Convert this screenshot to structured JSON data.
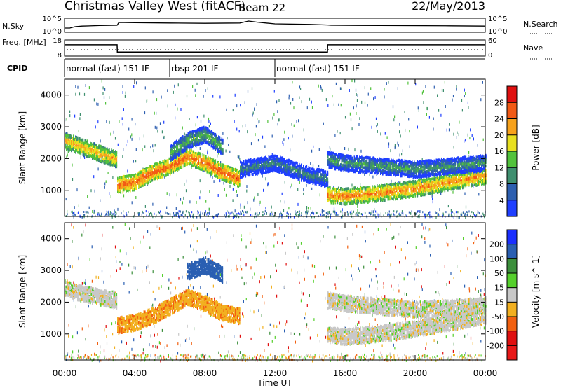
{
  "header": {
    "title": "Christmas Valley West (fitACF)",
    "beam": "Beam 22",
    "date": "22/May/2013"
  },
  "chart_data": [
    {
      "type": "line",
      "name_label": "N.Sky",
      "right_label": "N.Search",
      "yticks_left": [
        "10^5",
        "10^0"
      ],
      "yticks_right": [
        "10^5",
        "10^0"
      ],
      "x": [
        0,
        0.3,
        0.6,
        1,
        2,
        3,
        3.1,
        4,
        6,
        8,
        10,
        10.5,
        11,
        12,
        14,
        15,
        15.2,
        18,
        22,
        24
      ],
      "y": [
        1.5,
        1.5,
        2.0,
        2.2,
        2.4,
        2.5,
        3.5,
        3.4,
        3.3,
        3.2,
        3.3,
        4.0,
        3.6,
        3.0,
        2.8,
        2.6,
        2.5,
        2.4,
        2.3,
        2.2
      ]
    },
    {
      "type": "line",
      "name_label": "Freq. [MHz]",
      "right_label": "Nave",
      "yticks_left": [
        "18",
        "8"
      ],
      "yticks_right": [
        "60",
        "0"
      ],
      "x": [
        0,
        3,
        3.01,
        15,
        15.01,
        24
      ],
      "y": [
        15,
        15,
        10.5,
        10.5,
        15,
        15
      ]
    },
    {
      "type": "table",
      "name_label": "CPID",
      "segments": [
        {
          "start": 0,
          "end": 6,
          "label": "normal (fast) 151 IF"
        },
        {
          "start": 6,
          "end": 12,
          "label": "rbsp 201 IF"
        },
        {
          "start": 12,
          "end": 24,
          "label": "normal (fast) 151 IF"
        }
      ]
    },
    {
      "type": "heatmap",
      "ylabel": "Slant Range [km]",
      "yticks": [
        1000,
        2000,
        3000,
        4000
      ],
      "ylim": [
        180,
        4500
      ],
      "colorbar_label": "Power [dB]",
      "colorbar_ticks": [
        4,
        8,
        12,
        16,
        20,
        24,
        28
      ],
      "colorbar_colors": [
        "#1f3fff",
        "#2d5fb0",
        "#3f8f6f",
        "#52c23c",
        "#e8e020",
        "#f7a21c",
        "#f25a15",
        "#e01010"
      ],
      "bands": [
        {
          "x": [
            0,
            1,
            2,
            3
          ],
          "y": [
            2600,
            2400,
            2200,
            2000
          ],
          "v": 22
        },
        {
          "x": [
            3,
            4,
            5,
            6,
            7,
            8,
            9,
            10
          ],
          "y": [
            1200,
            1300,
            1600,
            1800,
            2100,
            1900,
            1600,
            1400
          ],
          "v": 26
        },
        {
          "x": [
            6,
            7,
            8,
            9
          ],
          "y": [
            2200,
            2600,
            2800,
            2400
          ],
          "v": 14
        },
        {
          "x": [
            10,
            11,
            12,
            13,
            14,
            15
          ],
          "y": [
            1700,
            1800,
            1900,
            1700,
            1500,
            1400
          ],
          "v": 10
        },
        {
          "x": [
            15,
            16,
            18,
            20,
            22,
            24
          ],
          "y": [
            900,
            850,
            950,
            1100,
            1300,
            1500
          ],
          "v": 24
        },
        {
          "x": [
            15,
            16,
            18,
            20,
            22,
            24
          ],
          "y": [
            2000,
            1900,
            1800,
            1700,
            1800,
            1900
          ],
          "v": 12
        }
      ]
    },
    {
      "type": "heatmap",
      "ylabel": "Slant Range [km]",
      "yticks": [
        1000,
        2000,
        3000,
        4000
      ],
      "ylim": [
        180,
        4500
      ],
      "colorbar_label": "Velocity [m s^-1]",
      "colorbar_ticks": [
        200,
        100,
        50,
        15,
        -15,
        -50,
        -100,
        -200
      ],
      "colorbar_colors": [
        "#1b2fff",
        "#2a5fb2",
        "#3c8f3c",
        "#55d02c",
        "#c8c8c8",
        "#f2b020",
        "#f26010",
        "#e01010",
        "#e81818"
      ],
      "bands": [
        {
          "x": [
            0,
            1,
            2,
            3
          ],
          "y": [
            2500,
            2300,
            2200,
            2100
          ],
          "v": 0
        },
        {
          "x": [
            3,
            4,
            5,
            6,
            7,
            8,
            9,
            10
          ],
          "y": [
            1300,
            1400,
            1600,
            1900,
            2200,
            2000,
            1700,
            1600
          ],
          "v": -40
        },
        {
          "x": [
            7,
            8,
            9
          ],
          "y": [
            3000,
            3200,
            2900
          ],
          "v": 150
        },
        {
          "x": [
            15,
            16,
            18,
            20,
            22,
            24
          ],
          "y": [
            1000,
            950,
            1050,
            1200,
            1400,
            1600
          ],
          "v": 0
        },
        {
          "x": [
            15,
            16,
            18,
            20,
            22,
            24
          ],
          "y": [
            2100,
            2000,
            1900,
            1800,
            1850,
            1950
          ],
          "v": 0
        }
      ]
    }
  ],
  "xaxis": {
    "xlabel": "Time UT",
    "ticks": [
      "00:00",
      "04:00",
      "08:00",
      "12:00",
      "16:00",
      "20:00",
      "00:00"
    ],
    "xlim": [
      0,
      24
    ]
  }
}
